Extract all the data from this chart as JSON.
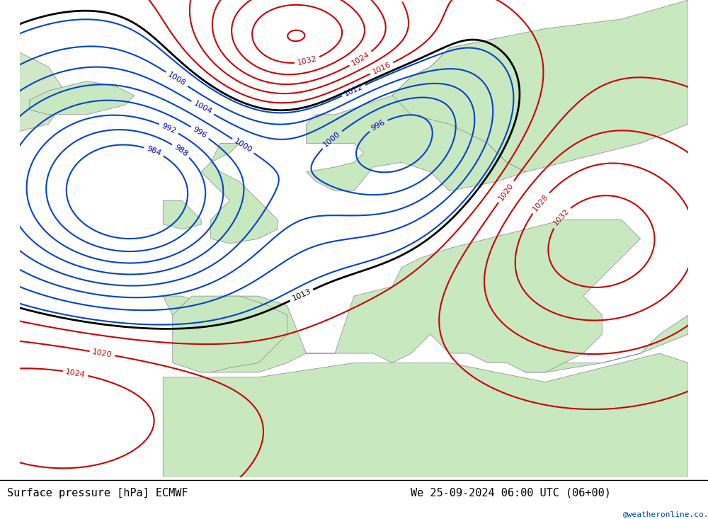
{
  "title_left": "Surface pressure [hPa] ECMWF",
  "title_right": "We 25-09-2024 06:00 UTC (06+00)",
  "watermark": "@weatheronline.co.uk",
  "bg_color": "#d0d8e8",
  "land_color_low": "#c8e8c0",
  "land_color_high": "#a8d898",
  "font_color_black": "#000000",
  "font_color_blue": "#0000cc",
  "font_color_red": "#cc0000",
  "contour_black": "#000000",
  "contour_blue": "#0044cc",
  "contour_red": "#cc0000",
  "figsize": [
    10.0,
    7.33
  ],
  "dpi": 100
}
